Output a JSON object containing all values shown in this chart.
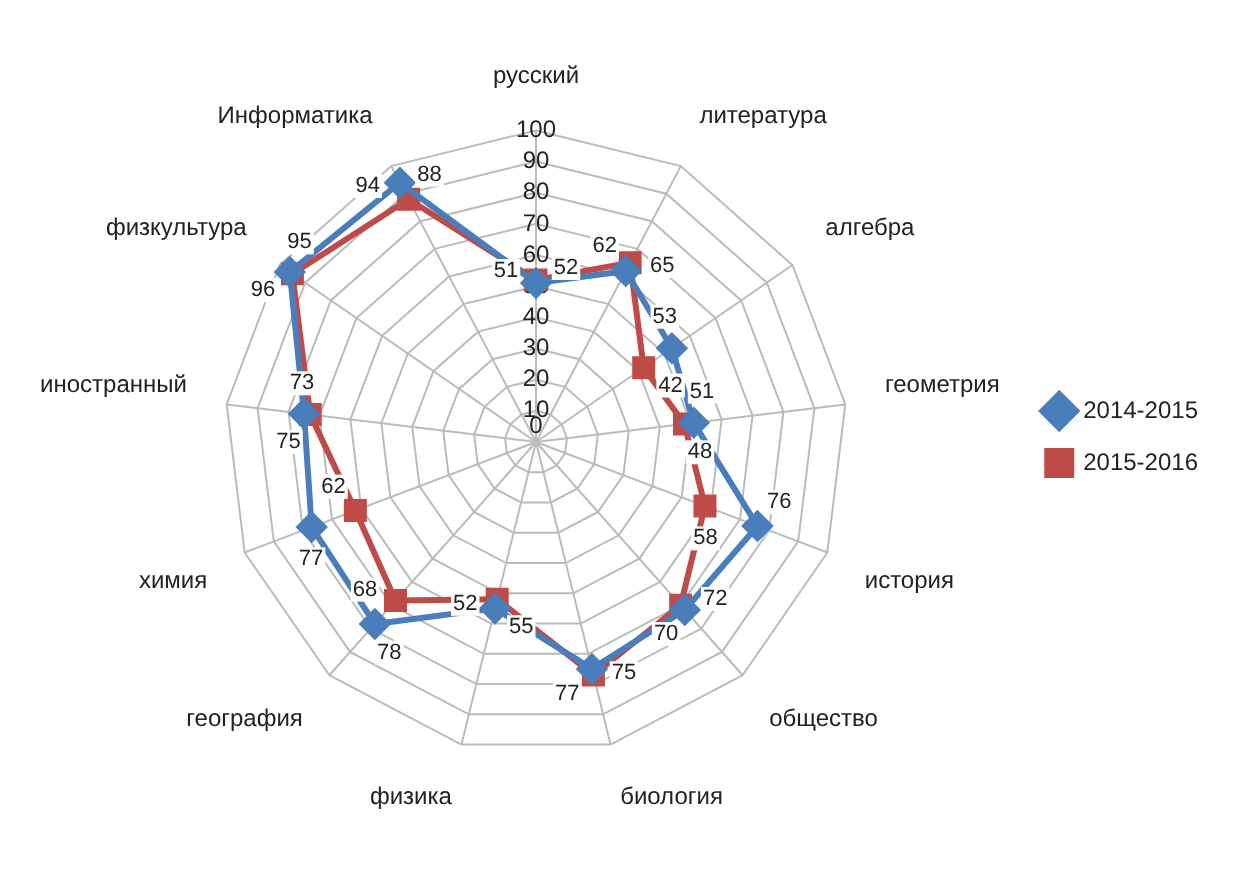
{
  "chart_data": {
    "type": "radar",
    "categories": [
      "русский",
      "литература",
      "алгебра",
      "геометрия",
      "история",
      "общество",
      "биология",
      "физика",
      "география",
      "химия",
      "иностранный",
      "физкультура",
      "Информатика"
    ],
    "series": [
      {
        "name": "2014-2015",
        "color": "#4a7ebb",
        "marker": "diamond",
        "values": [
          51,
          62,
          53,
          51,
          76,
          72,
          75,
          55,
          78,
          77,
          75,
          96,
          94
        ]
      },
      {
        "name": "2015-2016",
        "color": "#be4b48",
        "marker": "square",
        "values": [
          52,
          65,
          42,
          48,
          58,
          70,
          77,
          52,
          68,
          62,
          73,
          95,
          88
        ]
      }
    ],
    "ylim": [
      0,
      100
    ],
    "yticks": [
      0,
      10,
      20,
      30,
      40,
      50,
      60,
      70,
      80,
      90,
      100
    ],
    "grid": true,
    "legend": "right",
    "data_labels": true
  }
}
